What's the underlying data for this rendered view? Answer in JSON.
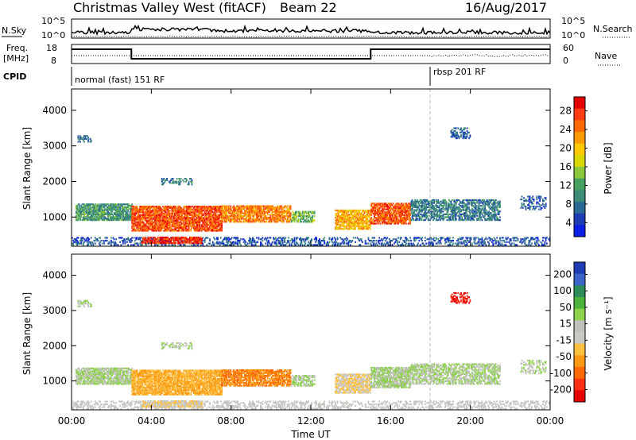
{
  "header": {
    "title": "Christmas Valley West (fitACF)",
    "beam": "Beam 22",
    "date": "16/Aug/2017"
  },
  "strip_labels": {
    "nsky": "N.Sky",
    "freq_line1": "Freq.",
    "freq_line2": "[MHz]",
    "cpid": "CPID",
    "nsearch": "N.Search",
    "nave": "Nave",
    "nsky_ticks": [
      "10^5",
      "10^0"
    ],
    "nsearch_ticks": [
      "10^5",
      "10^0"
    ],
    "freq_ticks": [
      "18",
      "8"
    ],
    "nave_ticks": [
      "60",
      "0"
    ]
  },
  "cpid_labels": [
    "normal (fast) 151 RF",
    "rbsp 201 RF"
  ],
  "chart_data": {
    "type": "heatmap",
    "x_axis": {
      "label": "Time UT",
      "range_hours": [
        0,
        24
      ],
      "ticks": [
        "00:00",
        "04:00",
        "08:00",
        "12:00",
        "16:00",
        "20:00",
        "00:00"
      ]
    },
    "panels": [
      {
        "name": "power",
        "ylabel": "Slant Range [km]",
        "ylim": [
          180,
          4600
        ],
        "yticks": [
          "4000",
          "3000",
          "2000",
          "1000"
        ],
        "colorbar": {
          "label": "Power [dB]",
          "ticks": [
            "28",
            "24",
            "20",
            "16",
            "12",
            "8",
            "4"
          ],
          "colors": [
            "#e60000",
            "#ff3c14",
            "#ff6a00",
            "#ff9a00",
            "#ffc800",
            "#d8d800",
            "#8cc83c",
            "#48a060",
            "#3c8c78",
            "#2c6a96",
            "#1e3cb4",
            "#0a1ee6"
          ]
        }
      },
      {
        "name": "velocity",
        "ylabel": "Slant Range [km]",
        "ylim": [
          180,
          4600
        ],
        "yticks": [
          "4000",
          "3000",
          "2000",
          "1000"
        ],
        "colorbar": {
          "label": "Velocity [m s⁻¹]",
          "ticks": [
            "200",
            "100",
            "50",
            "15",
            "-15",
            "-50",
            "-100",
            "-200"
          ],
          "colors": [
            "#1e3cb4",
            "#3c64c8",
            "#2c8c5a",
            "#4cb43c",
            "#8cd24a",
            "#c0c0bc",
            "#c8c8c4",
            "#ffc040",
            "#ff9a14",
            "#ff6a00",
            "#ff3014",
            "#e60000"
          ]
        }
      }
    ],
    "frequency_mhz": [
      {
        "from_hour": 0,
        "to_hour": 3,
        "value": 15.5
      },
      {
        "from_hour": 3,
        "to_hour": 15,
        "value": 10.5
      },
      {
        "from_hour": 15,
        "to_hour": 24,
        "value": 15.5
      }
    ],
    "cpid_change_hour": 18.0
  },
  "colors": {
    "frame": "#000000",
    "dashed_line": "#bbbbbb"
  }
}
